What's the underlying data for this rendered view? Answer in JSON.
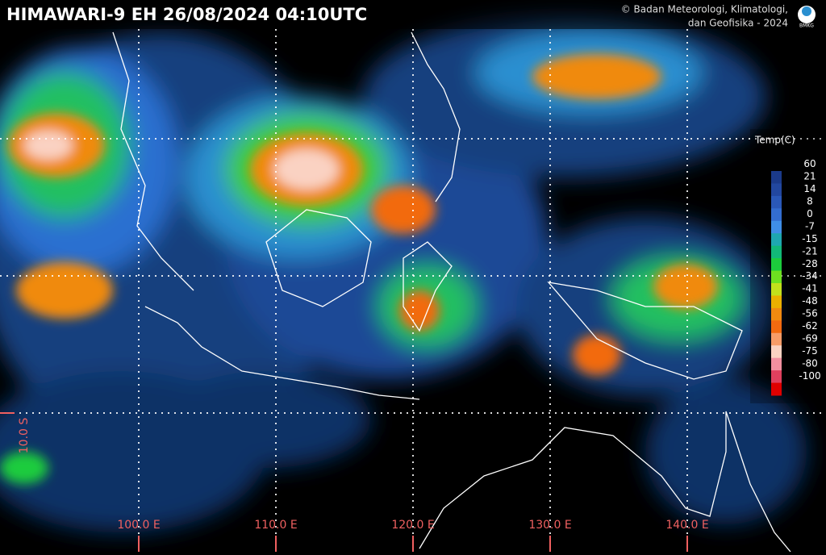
{
  "header": {
    "title": "HIMAWARI-9 EH  26/08/2024  04:10UTC",
    "copyright_line1": "© Badan Meteorologi, Klimatologi,",
    "copyright_line2": "dan Geofisika -  2024",
    "logo": "BMKG"
  },
  "graticule": {
    "lon_labels": [
      "100.0 E",
      "110.0 E",
      "120.0 E",
      "130.0 E",
      "140.0 E"
    ],
    "lat_labels": [
      "10.0 S"
    ]
  },
  "legend": {
    "title": "Temp(C)",
    "items": [
      {
        "value": 60,
        "color": "#1b3a8a"
      },
      {
        "value": 21,
        "color": "#22479f"
      },
      {
        "value": 14,
        "color": "#2a58b8"
      },
      {
        "value": 8,
        "color": "#336dd0"
      },
      {
        "value": 0,
        "color": "#3f8ee6"
      },
      {
        "value": -7,
        "color": "#1ea7b0"
      },
      {
        "value": -15,
        "color": "#12b878"
      },
      {
        "value": -21,
        "color": "#1ccc3c"
      },
      {
        "value": -28,
        "color": "#6ee020"
      },
      {
        "value": -34,
        "color": "#c2e01c"
      },
      {
        "value": -41,
        "color": "#eab000"
      },
      {
        "value": -48,
        "color": "#f08a10"
      },
      {
        "value": -56,
        "color": "#f26a10"
      },
      {
        "value": -62,
        "color": "#f79c68"
      },
      {
        "value": -69,
        "color": "#fad2c2"
      },
      {
        "value": -75,
        "color": "#f290a0"
      },
      {
        "value": -80,
        "color": "#e0405e"
      },
      {
        "value": -100,
        "color": "#e00000"
      }
    ]
  }
}
